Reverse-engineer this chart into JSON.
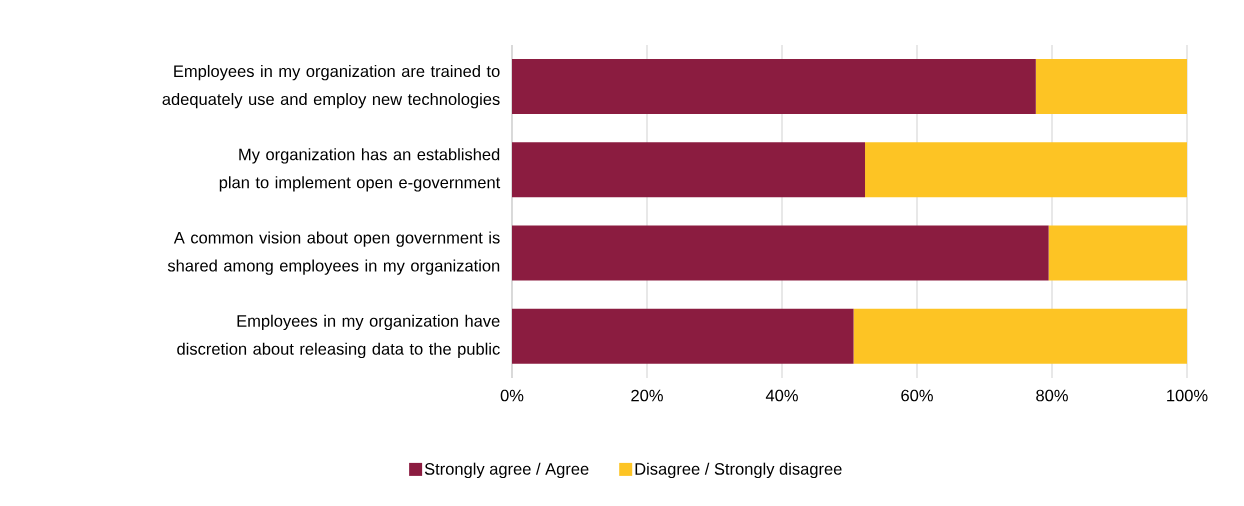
{
  "chart_data": {
    "type": "bar",
    "orientation": "horizontal",
    "stacked": true,
    "categories": [
      "Employees in my organization are trained to adequately use and employ new technologies",
      "My organization has an established plan to implement open e-government",
      "A common vision about open government is shared among employees in my organization",
      "Employees in my organization have discretion about releasing data to the public"
    ],
    "series": [
      {
        "name": "Strongly agree / Agree",
        "color": "#8b1c40",
        "values": [
          77.6,
          52.3,
          79.5,
          50.6
        ]
      },
      {
        "name": "Disagree / Strongly disagree",
        "color": "#fdc424",
        "values": [
          22.4,
          47.7,
          20.5,
          49.4
        ]
      }
    ],
    "xlim": [
      0,
      100
    ],
    "xticks": [
      {
        "value": 0,
        "label": "0%"
      },
      {
        "value": 20,
        "label": "20%"
      },
      {
        "value": 40,
        "label": "40%"
      },
      {
        "value": 60,
        "label": "60%"
      },
      {
        "value": 80,
        "label": "80%"
      },
      {
        "value": 100,
        "label": "100%"
      }
    ],
    "grid": "x",
    "legend": "bottom"
  }
}
